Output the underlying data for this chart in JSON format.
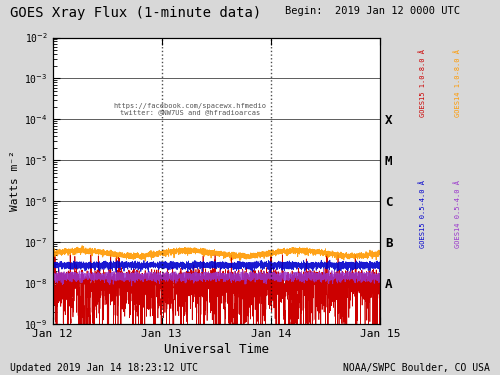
{
  "title": "GOES Xray Flux (1-minute data)",
  "begin_label": "Begin:  2019 Jan 12 0000 UTC",
  "updated_label": "Updated 2019 Jan 14 18:23:12 UTC",
  "noaa_label": "NOAA/SWPC Boulder, CO USA",
  "xlabel": "Universal Time",
  "ylabel": "Watts m⁻²",
  "ylim": [
    1e-09,
    0.01
  ],
  "xtick_labels": [
    "Jan 12",
    "Jan 13",
    "Jan 14",
    "Jan 15"
  ],
  "xtick_positions": [
    0,
    1,
    2,
    3
  ],
  "flare_classes": [
    "X",
    "M",
    "C",
    "B",
    "A"
  ],
  "flare_levels": [
    0.0001,
    1e-05,
    1e-06,
    1e-07,
    1e-08
  ],
  "bg_color": "#d8d8d8",
  "plot_bg_color": "#ffffff",
  "grid_color": "#000000",
  "goes15_short_color": "#cc0000",
  "goes14_short_color": "#ff9900",
  "goes15_long_color": "#0000cc",
  "goes14_long_color": "#9933cc",
  "social_text": "https://facebook.com/spacewx.hfmedio\ntwitter: @NW7US and @hfradioarcas",
  "noise_seed": 12345,
  "num_points": 4320,
  "goes14_short_base": 5.5e-08,
  "goes15_long_base": 2.8e-08,
  "goes14_long_base": 1.5e-08,
  "goes15_short_base": 1e-08
}
